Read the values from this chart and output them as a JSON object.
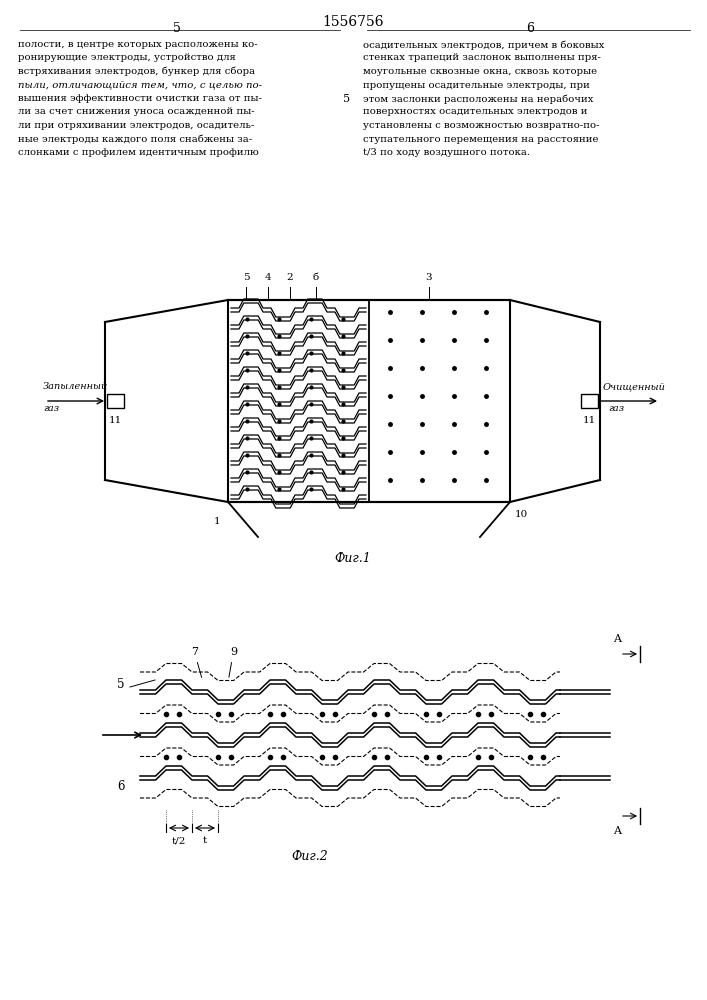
{
  "page_title": "1556756",
  "page_nums": [
    "5",
    "6"
  ],
  "text_left": "полости, в центре которых расположены ко-\nронирующие электроды, устройство для\nвстряхивания электродов, бункер для сбора\nпыли, отличающийся тем, что, с целью по-\nвышения эффективности очистки газа от пы-\nли за счет снижения уноса осажденной пы-\nли при отряхивании электродов, осадитель-\nные электроды каждого поля снабжены за-\nслонками с профилем идентичным профилю",
  "text_right": "осадительных электродов, причем в боковых\nстенках трапеций заслонок выполнены пря-\nмоугольные сквозные окна, сквозь которые\nпропущены осадительные электроды, при\nэтом заслонки расположены на нерабочих\nповерхностях осадительных электродов и\nустановлены с возможностью возвратно-по-\nступательного перемещения на расстояние\nt/3 по ходу воздушного потока.",
  "fig1_caption": "Фиг.1",
  "fig2_caption": "Фиг.2",
  "bg_color": "#ffffff",
  "line_color": "#000000",
  "text_color": "#000000"
}
